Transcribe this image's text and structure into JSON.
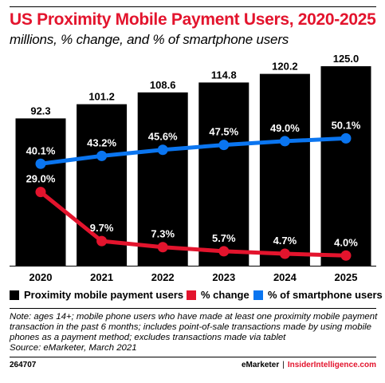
{
  "header": {
    "title": "US Proximity Mobile Payment Users, 2020-2025",
    "subtitle": "millions, % change, and % of smartphone users"
  },
  "chart_data": {
    "type": "bar",
    "categories": [
      "2020",
      "2021",
      "2022",
      "2023",
      "2024",
      "2025"
    ],
    "series": [
      {
        "name": "Proximity mobile payment users",
        "type": "bar",
        "values": [
          92.3,
          101.2,
          108.6,
          114.8,
          120.2,
          125.0
        ],
        "labels": [
          "92.3",
          "101.2",
          "108.6",
          "114.8",
          "120.2",
          "125.0"
        ],
        "color": "#000000"
      },
      {
        "name": "% change",
        "type": "line",
        "values": [
          29.0,
          9.7,
          7.3,
          5.7,
          4.7,
          4.0
        ],
        "labels": [
          "29.0%",
          "9.7%",
          "7.3%",
          "5.7%",
          "4.7%",
          "4.0%"
        ],
        "color": "#e3142d"
      },
      {
        "name": "% of smartphone users",
        "type": "line",
        "values": [
          40.1,
          43.2,
          45.6,
          47.5,
          49.0,
          50.1
        ],
        "labels": [
          "40.1%",
          "43.2%",
          "45.6%",
          "47.5%",
          "49.0%",
          "50.1%"
        ],
        "color": "#0a75f0"
      }
    ],
    "legend_position": "bottom",
    "grid": false
  },
  "notes": {
    "lines": [
      "Note: ages 14+; mobile phone users who have made at least one proximity mobile payment",
      "transaction in the past 6 months; includes point-of-sale transactions made by using mobile",
      "phones as a payment method; excludes transactions made via tablet",
      "Source: eMarketer, March 2021"
    ]
  },
  "footer": {
    "id": "264707",
    "brand": "eMarketer",
    "separator": "|",
    "site": "InsiderIntelligence.com"
  }
}
